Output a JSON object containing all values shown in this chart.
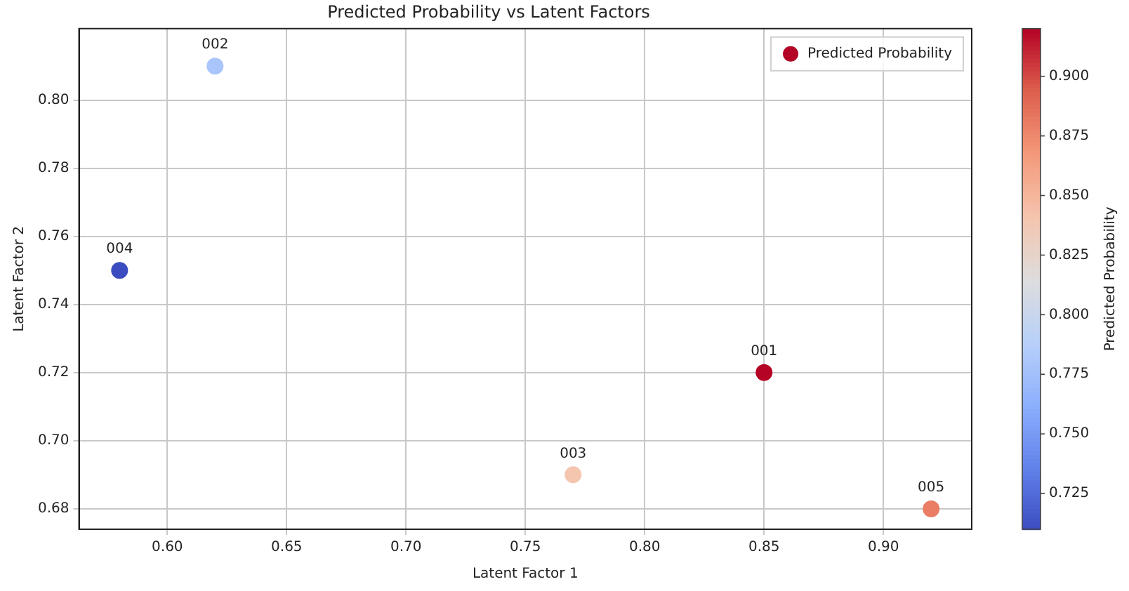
{
  "chart_data": {
    "type": "scatter",
    "title": "Predicted Probability vs Latent Factors",
    "xlabel": "Latent Factor 1",
    "ylabel": "Latent Factor 2",
    "clabel": "Predicted Probability",
    "x": [
      0.85,
      0.62,
      0.77,
      0.58,
      0.92
    ],
    "series": [
      {
        "name": "Predicted Probability",
        "values": [
          0.72,
          0.81,
          0.69,
          0.75,
          0.68
        ],
        "cvalues": [
          0.92,
          0.78,
          0.84,
          0.71,
          0.88
        ]
      }
    ],
    "annotations": [
      {
        "text": "001",
        "x": 0.85,
        "y": 0.72
      },
      {
        "text": "002",
        "x": 0.62,
        "y": 0.81
      },
      {
        "text": "003",
        "x": 0.77,
        "y": 0.69
      },
      {
        "text": "004",
        "x": 0.58,
        "y": 0.75
      },
      {
        "text": "005",
        "x": 0.92,
        "y": 0.68
      }
    ],
    "xlim": [
      0.563,
      0.937
    ],
    "ylim": [
      0.674,
      0.821
    ],
    "xticks": [
      {
        "value": 0.6,
        "label": "0.60"
      },
      {
        "value": 0.65,
        "label": "0.65"
      },
      {
        "value": 0.7,
        "label": "0.70"
      },
      {
        "value": 0.75,
        "label": "0.75"
      },
      {
        "value": 0.8,
        "label": "0.80"
      },
      {
        "value": 0.85,
        "label": "0.85"
      },
      {
        "value": 0.9,
        "label": "0.90"
      }
    ],
    "yticks": [
      {
        "value": 0.68,
        "label": "0.68"
      },
      {
        "value": 0.7,
        "label": "0.70"
      },
      {
        "value": 0.72,
        "label": "0.72"
      },
      {
        "value": 0.74,
        "label": "0.74"
      },
      {
        "value": 0.76,
        "label": "0.76"
      },
      {
        "value": 0.78,
        "label": "0.78"
      },
      {
        "value": 0.8,
        "label": "0.80"
      }
    ],
    "clim": [
      0.71,
      0.92
    ],
    "cticks": [
      0.725,
      {
        "value": 0.75,
        "label": "0.750"
      },
      0.775,
      {
        "value": 0.8,
        "label": "0.800"
      },
      0.825,
      {
        "value": 0.85,
        "label": "0.850"
      },
      0.875,
      {
        "value": 0.9,
        "label": "0.900"
      }
    ],
    "grid": true,
    "legend": "top right",
    "marker": "circle"
  }
}
